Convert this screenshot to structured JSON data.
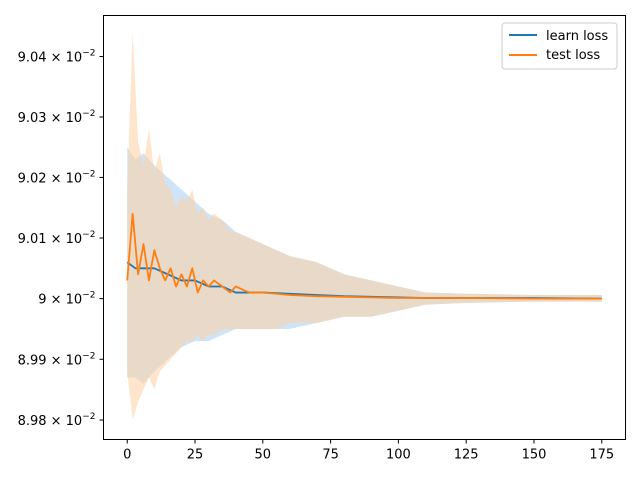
{
  "chart_data": {
    "type": "line",
    "title": "",
    "xlabel": "",
    "ylabel": "",
    "xlim": [
      -8.75,
      183.75
    ],
    "ylim": [
      0.089768,
      0.090468
    ],
    "y_scale": "log",
    "grid": false,
    "legend_position": "top-right",
    "x_ticks": [
      0,
      25,
      50,
      75,
      100,
      125,
      150,
      175
    ],
    "x_tick_labels": [
      "0",
      "25",
      "50",
      "75",
      "100",
      "125",
      "150",
      "175"
    ],
    "y_ticks": [
      0.0898,
      0.0899,
      0.09,
      0.0901,
      0.0902,
      0.0903,
      0.0904
    ],
    "y_tick_labels": [
      {
        "mantissa": "8.98",
        "exp": "−2"
      },
      {
        "mantissa": "8.99",
        "exp": "−2"
      },
      {
        "mantissa": "9",
        "exp": "−2"
      },
      {
        "mantissa": "9.01",
        "exp": "−2"
      },
      {
        "mantissa": "9.02",
        "exp": "−2"
      },
      {
        "mantissa": "9.03",
        "exp": "−2"
      },
      {
        "mantissa": "9.04",
        "exp": "−2"
      }
    ],
    "y_tick_base": "10",
    "series": [
      {
        "name": "learn loss",
        "color": "#1f77b4",
        "band_color": "#a7cdf0",
        "x": [
          0,
          3,
          6,
          10,
          15,
          20,
          25,
          30,
          35,
          40,
          50,
          60,
          70,
          80,
          90,
          100,
          110,
          125,
          150,
          175
        ],
        "y": [
          0.09006,
          0.09005,
          0.09005,
          0.09005,
          0.09004,
          0.09003,
          0.09003,
          0.09002,
          0.09002,
          0.09001,
          0.09001,
          0.090008,
          0.090006,
          0.090004,
          0.090003,
          0.090002,
          0.090001,
          0.090001,
          0.090001,
          0.09
        ],
        "lower": [
          0.08987,
          0.08987,
          0.08986,
          0.08988,
          0.0899,
          0.08992,
          0.08993,
          0.08993,
          0.08994,
          0.08995,
          0.08995,
          0.08995,
          0.08996,
          0.08997,
          0.08997,
          0.08998,
          0.08999,
          0.089993,
          0.089995,
          0.089995
        ],
        "upper": [
          0.09025,
          0.09023,
          0.09024,
          0.09022,
          0.0902,
          0.09018,
          0.09016,
          0.09014,
          0.09013,
          0.09011,
          0.09009,
          0.09007,
          0.09006,
          0.09004,
          0.09003,
          0.09002,
          0.09001,
          0.090008,
          0.090006,
          0.090006
        ]
      },
      {
        "name": "test loss",
        "color": "#ff7f0e",
        "band_color": "#ffd0a3",
        "x": [
          0,
          2,
          4,
          6,
          8,
          10,
          12,
          14,
          16,
          18,
          20,
          22,
          24,
          26,
          28,
          30,
          32,
          35,
          38,
          40,
          45,
          50,
          55,
          60,
          70,
          80,
          90,
          100,
          110,
          125,
          150,
          175
        ],
        "y": [
          0.09003,
          0.09014,
          0.09004,
          0.09009,
          0.09003,
          0.09008,
          0.09005,
          0.09003,
          0.09005,
          0.09002,
          0.09004,
          0.09002,
          0.09005,
          0.09001,
          0.09003,
          0.09002,
          0.09003,
          0.09002,
          0.09001,
          0.09002,
          0.09001,
          0.09001,
          0.090008,
          0.090006,
          0.090004,
          0.090003,
          0.090002,
          0.090001,
          0.090001,
          0.090001,
          0.09,
          0.09
        ],
        "lower": [
          0.08988,
          0.0898,
          0.08983,
          0.08985,
          0.08987,
          0.08985,
          0.08988,
          0.08989,
          0.0899,
          0.08991,
          0.08992,
          0.08993,
          0.08993,
          0.08994,
          0.08993,
          0.08994,
          0.08994,
          0.08995,
          0.08995,
          0.08995,
          0.08995,
          0.08995,
          0.08995,
          0.08996,
          0.08996,
          0.08997,
          0.08997,
          0.08998,
          0.08999,
          0.089993,
          0.089995,
          0.089995
        ],
        "upper": [
          0.09018,
          0.09044,
          0.09026,
          0.09022,
          0.09028,
          0.09021,
          0.09024,
          0.09019,
          0.09018,
          0.09015,
          0.09017,
          0.09016,
          0.09018,
          0.09014,
          0.09015,
          0.09013,
          0.09014,
          0.09013,
          0.09011,
          0.09011,
          0.0901,
          0.09009,
          0.09008,
          0.09007,
          0.09006,
          0.09004,
          0.09003,
          0.09002,
          0.09001,
          0.090008,
          0.090006,
          0.090006
        ]
      }
    ]
  }
}
